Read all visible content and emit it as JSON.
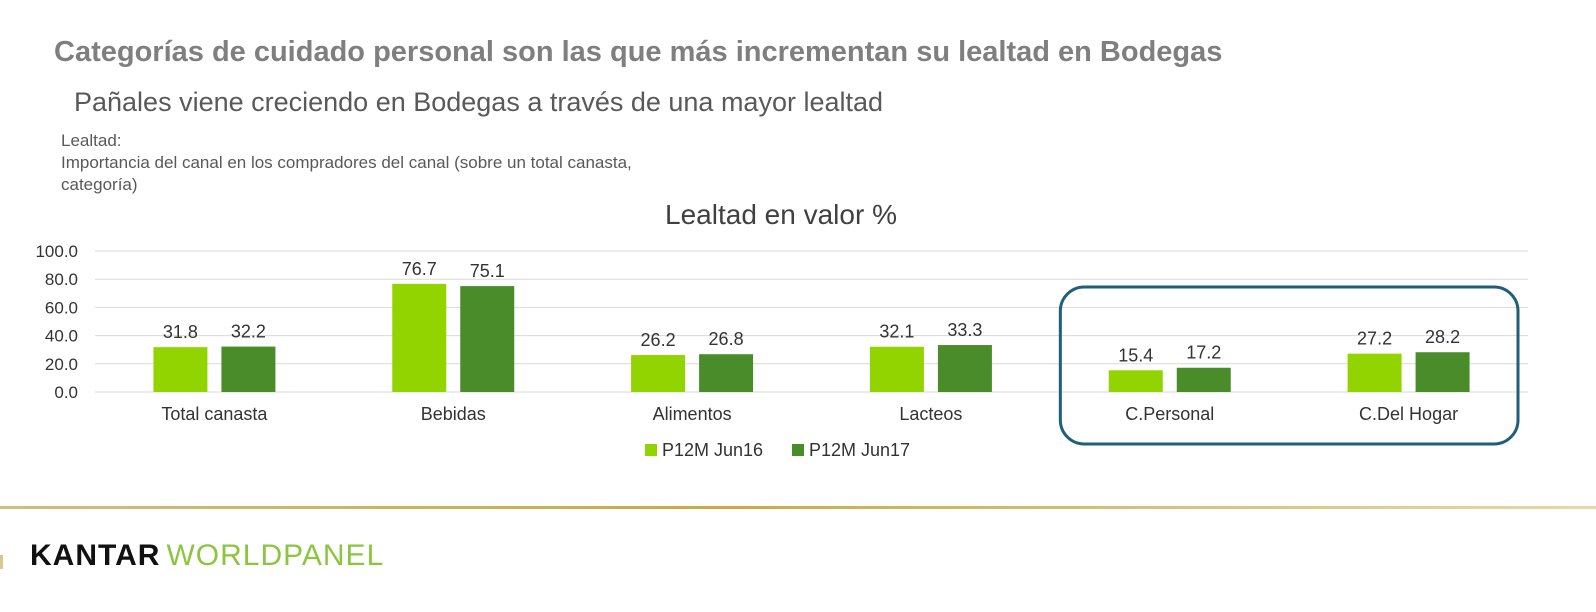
{
  "header": {
    "title": "Categorías de cuidado personal son las que más incrementan su lealtad en Bodegas",
    "subtitle": "Pañales viene creciendo en Bodegas a través de una mayor lealtad",
    "note_line1": "Lealtad:",
    "note_line2": "Importancia del canal en los compradores del canal (sobre un total canasta,",
    "note_line3": "categoría)"
  },
  "chart_data": {
    "type": "bar",
    "title": "Lealtad en valor %",
    "categories": [
      "Total canasta",
      "Bebidas",
      "Alimentos",
      "Lacteos",
      "C.Personal",
      "C.Del Hogar"
    ],
    "series": [
      {
        "name": "P12M Jun16",
        "color": "#92d400",
        "values": [
          31.8,
          76.7,
          26.2,
          32.1,
          15.4,
          27.2
        ]
      },
      {
        "name": "P12M Jun17",
        "color": "#4a8c2a",
        "values": [
          32.2,
          75.1,
          26.8,
          33.3,
          17.2,
          28.2
        ]
      }
    ],
    "yticks": [
      "100.0",
      "80.0",
      "60.0",
      "40.0",
      "20.0",
      "0.0"
    ],
    "ylim": [
      0,
      100
    ],
    "grid": true,
    "legend": "bottom-center",
    "highlight": {
      "categories": [
        "C.Personal",
        "C.Del Hogar"
      ],
      "color": "#1f5f7a"
    }
  },
  "footer": {
    "brand": "KANTAR",
    "product": "WORLDPANEL",
    "brand_color": "#111111",
    "product_color": "#8cc63f"
  }
}
